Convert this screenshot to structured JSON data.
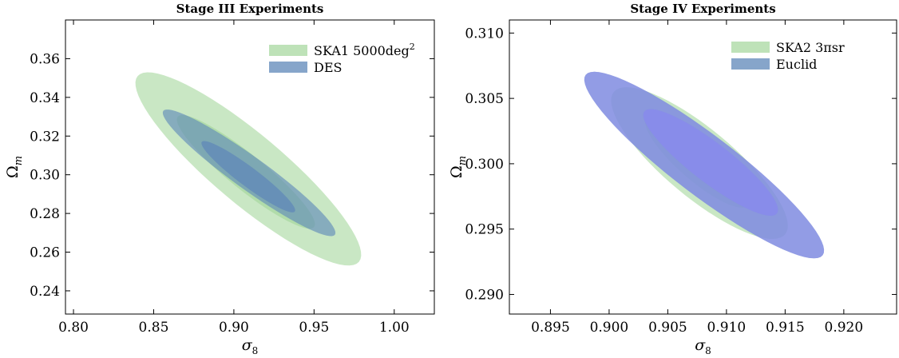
{
  "chart_data": [
    {
      "type": "contour",
      "title": "Stage III Experiments",
      "xlabel": "σ",
      "xlabel_sub": "8",
      "ylabel": "Ω",
      "ylabel_sub": "m",
      "xlim": [
        0.795,
        1.025
      ],
      "ylim": [
        0.228,
        0.38
      ],
      "xticks": [
        0.8,
        0.85,
        0.9,
        0.95,
        1.0
      ],
      "xtick_labels": [
        "0.80",
        "0.85",
        "0.90",
        "0.95",
        "1.00"
      ],
      "yticks": [
        0.24,
        0.26,
        0.28,
        0.3,
        0.32,
        0.34,
        0.36
      ],
      "ytick_labels": [
        "0.24",
        "0.26",
        "0.28",
        "0.30",
        "0.32",
        "0.34",
        "0.36"
      ],
      "legend": {
        "position": "top-right"
      },
      "series": [
        {
          "name": "SKA1 5000deg",
          "name_sup": "2",
          "color": "#a8d8a0",
          "ellipses": [
            {
              "level": "outer",
              "p1": [
                0.84,
                0.351
              ],
              "p2": [
                0.978,
                0.255
              ],
              "minor": 0.018
            },
            {
              "level": "inner",
              "p1": [
                0.865,
                0.33
              ],
              "p2": [
                0.95,
                0.273
              ],
              "minor": 0.009
            }
          ]
        },
        {
          "name": "DES",
          "name_sup": "",
          "color": "#5e87b8",
          "ellipses": [
            {
              "level": "outer",
              "p1": [
                0.856,
                0.333
              ],
              "p2": [
                0.963,
                0.269
              ],
              "minor": 0.0085
            },
            {
              "level": "inner",
              "p1": [
                0.88,
                0.317
              ],
              "p2": [
                0.938,
                0.281
              ],
              "minor": 0.005
            }
          ]
        }
      ]
    },
    {
      "type": "contour",
      "title": "Stage IV Experiments",
      "xlabel": "σ",
      "xlabel_sub": "8",
      "ylabel": "Ω",
      "ylabel_sub": "m",
      "xlim": [
        0.8915,
        0.9245
      ],
      "ylim": [
        0.2885,
        0.311
      ],
      "xticks": [
        0.895,
        0.9,
        0.905,
        0.91,
        0.915,
        0.92
      ],
      "xtick_labels": [
        "0.895",
        "0.900",
        "0.905",
        "0.910",
        "0.915",
        "0.920"
      ],
      "yticks": [
        0.29,
        0.295,
        0.3,
        0.305,
        0.31
      ],
      "ytick_labels": [
        "0.290",
        "0.295",
        "0.300",
        "0.305",
        "0.310"
      ],
      "legend": {
        "position": "top-right"
      },
      "series": [
        {
          "name": "SKA2 3πsr",
          "name_sup": "",
          "color": "#a8d8a0",
          "ellipses": [
            {
              "level": "outer",
              "p1": [
                0.9004,
                0.3055
              ],
              "p2": [
                0.915,
                0.2946
              ],
              "minor": 0.0026
            },
            {
              "level": "inner",
              "p1": [
                0.9032,
                0.3035
              ],
              "p2": [
                0.9118,
                0.2968
              ],
              "minor": 0.0014
            }
          ]
        },
        {
          "name": "Euclid",
          "name_sup": "",
          "color": "#5e87b8",
          "ellipses": [
            {
              "level": "outer",
              "p1": [
                0.898,
                0.3068
              ],
              "p2": [
                0.9182,
                0.293
              ],
              "minor": 0.0023
            },
            {
              "level": "inner",
              "p1": [
                0.903,
                0.304
              ],
              "p2": [
                0.9143,
                0.2962
              ],
              "minor": 0.0015
            }
          ]
        },
        {
          "name": "",
          "name_sup": "",
          "color": "#8c8cf0",
          "in_legend": false,
          "ellipses": [
            {
              "level": "outer",
              "p1": [
                0.898,
                0.3068
              ],
              "p2": [
                0.9182,
                0.293
              ],
              "minor": 0.0023
            },
            {
              "level": "inner",
              "p1": [
                0.903,
                0.304
              ],
              "p2": [
                0.9143,
                0.2962
              ],
              "minor": 0.0015
            }
          ]
        }
      ]
    }
  ]
}
